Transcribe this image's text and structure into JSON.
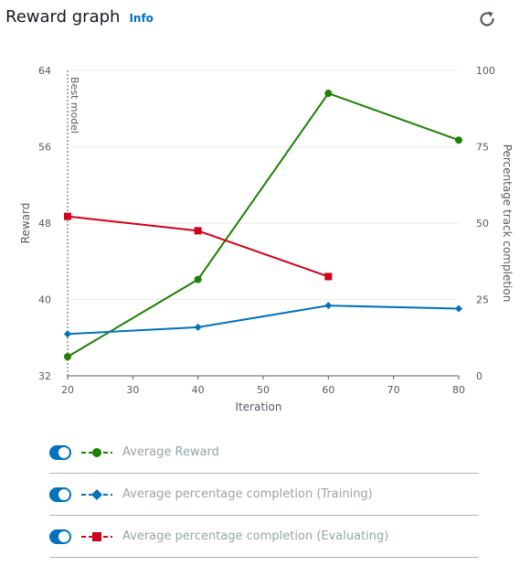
{
  "header": {
    "title": "Reward graph",
    "info_label": "Info"
  },
  "legend": [
    {
      "label": "Average Reward",
      "color": "#1d8102",
      "marker": "circle"
    },
    {
      "label": "Average percentage completion (Training)",
      "color": "#0073bb",
      "marker": "diamond"
    },
    {
      "label": "Average percentage completion (Evaluating)",
      "color": "#d0021b",
      "marker": "square"
    }
  ],
  "chart_data": {
    "type": "line",
    "xlabel": "Iteration",
    "ylabel_left": "Reward",
    "ylabel_right": "Percentage track completion",
    "x_ticks": [
      20,
      30,
      40,
      50,
      60,
      70,
      80
    ],
    "y_left_ticks": [
      32,
      40,
      48,
      56,
      64
    ],
    "y_right_ticks": [
      0,
      25,
      50,
      75,
      100
    ],
    "xlim": [
      20,
      80
    ],
    "ylim_left": [
      32,
      64
    ],
    "ylim_right": [
      0,
      100
    ],
    "grid": "horizontal",
    "annotation": {
      "x": 20,
      "label": "Best model"
    },
    "series": [
      {
        "name": "Average Reward",
        "axis": "left",
        "color": "#1d8102",
        "marker": "circle",
        "x": [
          20,
          40,
          60,
          80
        ],
        "y": [
          34.0,
          42.1,
          61.6,
          56.7
        ]
      },
      {
        "name": "Average percentage completion (Training)",
        "axis": "right",
        "color": "#0073bb",
        "marker": "diamond",
        "x": [
          20,
          40,
          60,
          80
        ],
        "y": [
          13.7,
          15.9,
          23.0,
          22.0
        ]
      },
      {
        "name": "Average percentage completion (Evaluating)",
        "axis": "right",
        "color": "#d0021b",
        "marker": "square",
        "x": [
          20,
          40,
          60
        ],
        "y": [
          52.2,
          47.5,
          32.5
        ]
      }
    ]
  }
}
